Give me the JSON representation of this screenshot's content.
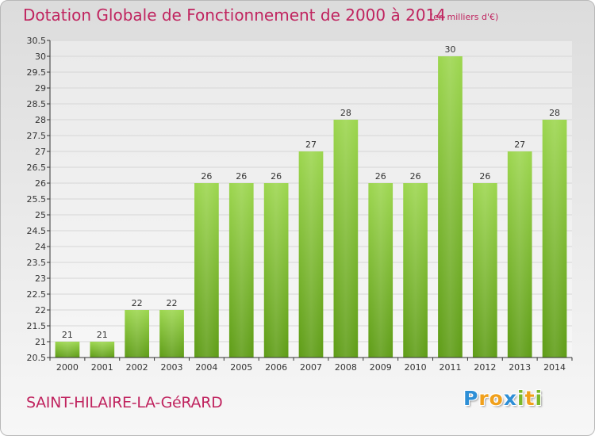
{
  "chart_data": {
    "type": "bar",
    "title": "Dotation Globale de Fonctionnement de 2000 à 2014",
    "subtitle": "(en milliers d'€)",
    "categories": [
      "2000",
      "2001",
      "2002",
      "2003",
      "2004",
      "2005",
      "2006",
      "2007",
      "2008",
      "2009",
      "2010",
      "2011",
      "2012",
      "2013",
      "2014"
    ],
    "values": [
      21,
      21,
      22,
      22,
      26,
      26,
      26,
      27,
      28,
      26,
      26,
      30,
      26,
      27,
      28
    ],
    "ylim": [
      20.5,
      30.5
    ],
    "yticks": [
      "20.5",
      "21",
      "21.5",
      "22",
      "22.5",
      "23",
      "23.5",
      "24",
      "24.5",
      "25",
      "25.5",
      "26",
      "26.5",
      "27",
      "27.5",
      "28",
      "28.5",
      "29",
      "29.5",
      "30",
      "30.5"
    ],
    "grid": true,
    "bar_color": "#7fbf2a",
    "xlabel": "",
    "ylabel": ""
  },
  "footer": {
    "commune": "SAINT-HILAIRE-LA-GéRARD",
    "logo_letters": [
      "P",
      "r",
      "o",
      "x",
      "i",
      "t",
      "i"
    ],
    "logo_colors": [
      "#2e8fd6",
      "#f0a01c",
      "#f0a01c",
      "#2e8fd6",
      "#7ab82a",
      "#f0a01c",
      "#7ab82a"
    ]
  },
  "colors": {
    "title": "#c0245f",
    "grid": "#d6d6d6",
    "axis": "#333333"
  }
}
